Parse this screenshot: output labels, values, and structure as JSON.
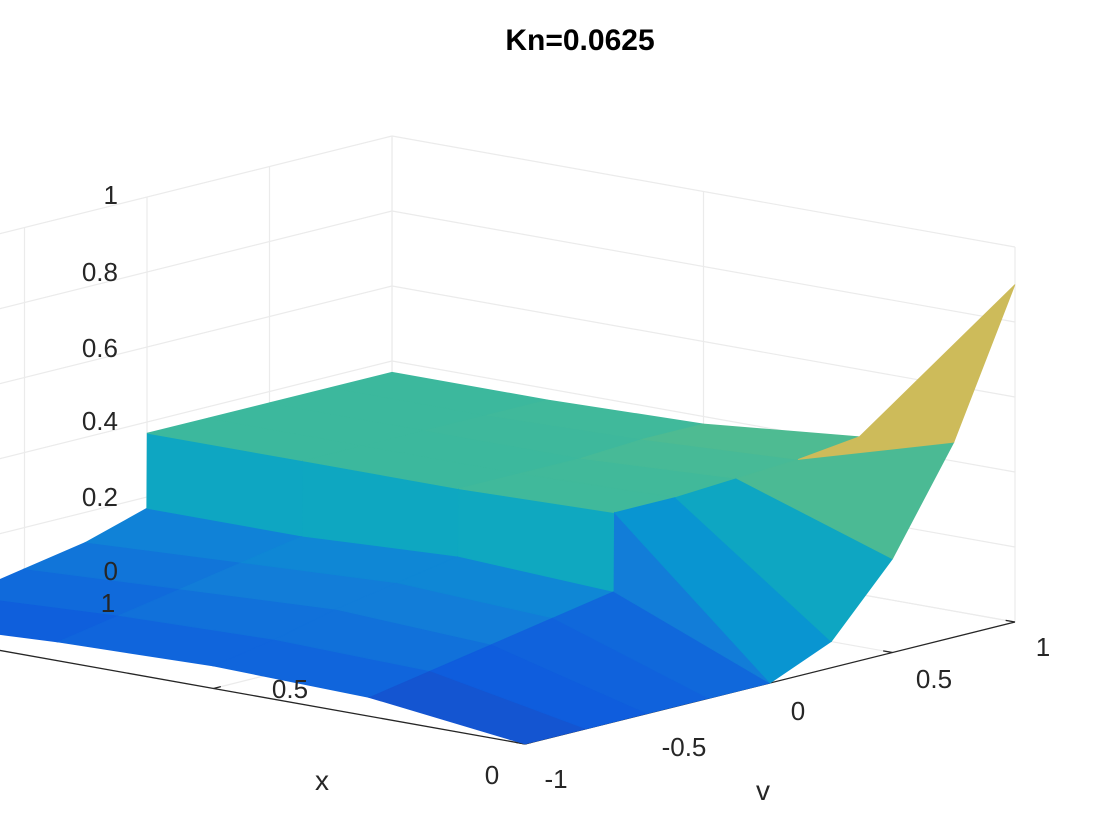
{
  "chart_data": {
    "type": "surface",
    "title": "Kn=0.0625",
    "xlabel": "v",
    "ylabel": "x",
    "zlabel": "",
    "v_ticks": [
      "-1",
      "-0.5",
      "0",
      "0.5",
      "1"
    ],
    "x_ticks": [
      "0",
      "0.5",
      "1"
    ],
    "z_ticks": [
      "0",
      "0.2",
      "0.4",
      "0.6",
      "0.8",
      "1"
    ],
    "vlim": [
      -1,
      1
    ],
    "xlim": [
      0,
      1
    ],
    "zlim": [
      0,
      1
    ],
    "grid": true,
    "colormap": "parula",
    "surface_description_data": {
      "v_grid": [
        -1,
        -0.75,
        -0.5,
        -0.25,
        -0.001,
        0.001,
        0.25,
        0.5,
        0.75,
        1
      ],
      "x_grid": [
        0,
        0.25,
        0.5,
        0.75,
        1
      ],
      "z_values_by_x_row": [
        [
          0.0,
          0.0,
          0.0,
          0.0,
          0.0,
          0.0,
          0.07,
          0.25,
          0.52,
          0.9
        ],
        [
          0.05,
          0.08,
          0.11,
          0.14,
          0.17,
          0.38,
          0.38,
          0.39,
          0.4,
          0.42
        ],
        [
          0.06,
          0.09,
          0.13,
          0.16,
          0.19,
          0.37,
          0.37,
          0.37,
          0.38,
          0.38
        ],
        [
          0.05,
          0.08,
          0.11,
          0.14,
          0.17,
          0.37,
          0.37,
          0.37,
          0.37,
          0.37
        ],
        [
          0.03,
          0.06,
          0.09,
          0.12,
          0.17,
          0.37,
          0.37,
          0.37,
          0.37,
          0.37
        ]
      ]
    }
  }
}
